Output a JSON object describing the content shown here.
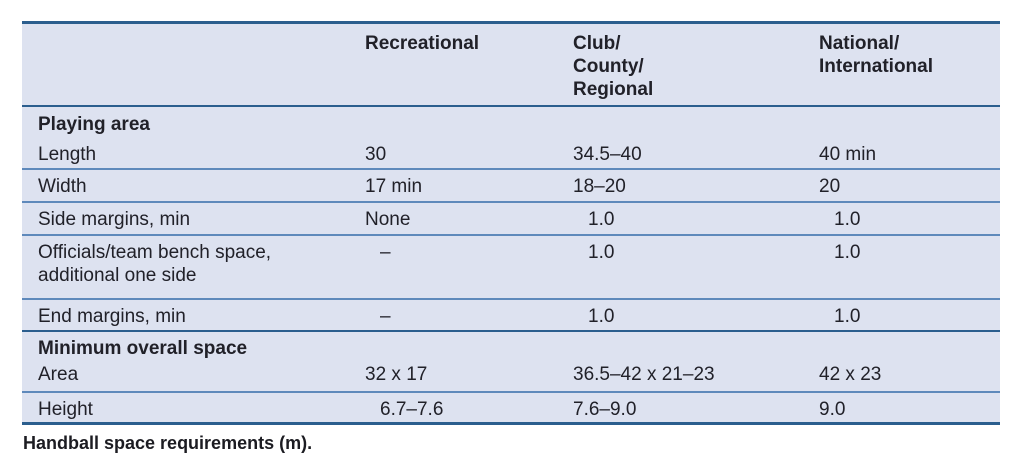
{
  "table": {
    "columns": [
      "",
      "Recreational",
      "Club/\nCounty/\nRegional",
      "National/\nInternational"
    ],
    "sections": [
      {
        "title": "Playing area",
        "rows": [
          {
            "label": "Length",
            "values": [
              "30",
              "34.5–40",
              "40 min"
            ]
          },
          {
            "label": "Width",
            "values": [
              "17 min",
              "18–20",
              "20"
            ]
          },
          {
            "label": "Side margins, min",
            "values": [
              "None",
              "1.0",
              "1.0"
            ]
          },
          {
            "label": "Officials/team bench space,\nadditional one side",
            "values": [
              "–",
              "1.0",
              "1.0"
            ]
          },
          {
            "label": "End margins, min",
            "values": [
              "–",
              "1.0",
              "1.0"
            ]
          }
        ]
      },
      {
        "title": "Minimum overall space",
        "rows": [
          {
            "label": "Area",
            "values": [
              "32 x 17",
              "36.5–42 x 21–23",
              "42 x 23"
            ]
          },
          {
            "label": "Height",
            "values": [
              "6.7–7.6",
              "7.6–9.0",
              "9.0"
            ]
          }
        ]
      }
    ]
  },
  "caption": "Handball space requirements (m)."
}
